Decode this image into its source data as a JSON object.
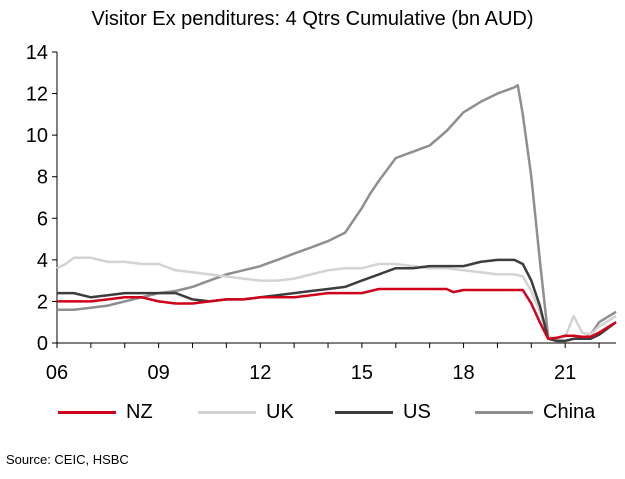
{
  "chart_data": {
    "type": "line",
    "title": "Visitor Ex penditures: 4 Qtrs Cumulative (bn AUD)",
    "ylim": [
      0,
      14
    ],
    "yticks": [
      0,
      2,
      4,
      6,
      8,
      10,
      12,
      14
    ],
    "xlim": [
      2006,
      2022.5
    ],
    "xtick_values": [
      2006,
      2009,
      2012,
      2015,
      2018,
      2021
    ],
    "xtick_labels": [
      "06",
      "09",
      "12",
      "15",
      "18",
      "21"
    ],
    "grid": false,
    "legend_position": "bottom",
    "series": [
      {
        "name": "NZ",
        "color": "#d0021b",
        "points": [
          [
            2006,
            2.0
          ],
          [
            2006.5,
            2.0
          ],
          [
            2007,
            2.0
          ],
          [
            2007.5,
            2.1
          ],
          [
            2008,
            2.2
          ],
          [
            2008.5,
            2.2
          ],
          [
            2009,
            2.0
          ],
          [
            2009.5,
            1.9
          ],
          [
            2010,
            1.9
          ],
          [
            2010.5,
            2.0
          ],
          [
            2011,
            2.1
          ],
          [
            2011.5,
            2.1
          ],
          [
            2012,
            2.2
          ],
          [
            2012.5,
            2.2
          ],
          [
            2013,
            2.2
          ],
          [
            2013.5,
            2.3
          ],
          [
            2014,
            2.4
          ],
          [
            2014.5,
            2.4
          ],
          [
            2015,
            2.4
          ],
          [
            2015.5,
            2.6
          ],
          [
            2016,
            2.6
          ],
          [
            2016.5,
            2.6
          ],
          [
            2017,
            2.6
          ],
          [
            2017.5,
            2.6
          ],
          [
            2017.7,
            2.45
          ],
          [
            2018,
            2.55
          ],
          [
            2018.5,
            2.55
          ],
          [
            2019,
            2.55
          ],
          [
            2019.5,
            2.55
          ],
          [
            2019.75,
            2.55
          ],
          [
            2020,
            1.9
          ],
          [
            2020.25,
            1.0
          ],
          [
            2020.5,
            0.2
          ],
          [
            2020.75,
            0.25
          ],
          [
            2021,
            0.35
          ],
          [
            2021.25,
            0.35
          ],
          [
            2021.5,
            0.3
          ],
          [
            2021.75,
            0.3
          ],
          [
            2022,
            0.5
          ],
          [
            2022.5,
            1.0
          ]
        ]
      },
      {
        "name": "UK",
        "color": "#d3d3d3",
        "points": [
          [
            2006,
            3.6
          ],
          [
            2006.25,
            3.8
          ],
          [
            2006.5,
            4.1
          ],
          [
            2007,
            4.1
          ],
          [
            2007.5,
            3.9
          ],
          [
            2008,
            3.9
          ],
          [
            2008.5,
            3.8
          ],
          [
            2009,
            3.8
          ],
          [
            2009.5,
            3.5
          ],
          [
            2010,
            3.4
          ],
          [
            2010.5,
            3.3
          ],
          [
            2011,
            3.2
          ],
          [
            2011.5,
            3.1
          ],
          [
            2012,
            3.0
          ],
          [
            2012.5,
            3.0
          ],
          [
            2013,
            3.1
          ],
          [
            2013.5,
            3.3
          ],
          [
            2014,
            3.5
          ],
          [
            2014.5,
            3.6
          ],
          [
            2015,
            3.6
          ],
          [
            2015.5,
            3.8
          ],
          [
            2016,
            3.8
          ],
          [
            2016.5,
            3.7
          ],
          [
            2017,
            3.6
          ],
          [
            2017.5,
            3.6
          ],
          [
            2018,
            3.5
          ],
          [
            2018.5,
            3.4
          ],
          [
            2019,
            3.3
          ],
          [
            2019.5,
            3.3
          ],
          [
            2019.75,
            3.2
          ],
          [
            2020,
            2.5
          ],
          [
            2020.25,
            1.5
          ],
          [
            2020.5,
            0.3
          ],
          [
            2020.75,
            0.2
          ],
          [
            2021,
            0.3
          ],
          [
            2021.25,
            1.3
          ],
          [
            2021.5,
            0.5
          ],
          [
            2021.75,
            0.4
          ],
          [
            2022,
            0.8
          ],
          [
            2022.5,
            1.3
          ]
        ]
      },
      {
        "name": "US",
        "color": "#3d3d3d",
        "points": [
          [
            2006,
            2.4
          ],
          [
            2006.5,
            2.4
          ],
          [
            2007,
            2.2
          ],
          [
            2007.5,
            2.3
          ],
          [
            2008,
            2.4
          ],
          [
            2008.5,
            2.4
          ],
          [
            2009,
            2.4
          ],
          [
            2009.5,
            2.4
          ],
          [
            2010,
            2.1
          ],
          [
            2010.5,
            2.0
          ],
          [
            2011,
            2.1
          ],
          [
            2011.5,
            2.1
          ],
          [
            2012,
            2.2
          ],
          [
            2012.5,
            2.3
          ],
          [
            2013,
            2.4
          ],
          [
            2013.5,
            2.5
          ],
          [
            2014,
            2.6
          ],
          [
            2014.5,
            2.7
          ],
          [
            2015,
            3.0
          ],
          [
            2015.5,
            3.3
          ],
          [
            2016,
            3.6
          ],
          [
            2016.5,
            3.6
          ],
          [
            2017,
            3.7
          ],
          [
            2017.5,
            3.7
          ],
          [
            2018,
            3.7
          ],
          [
            2018.5,
            3.9
          ],
          [
            2019,
            4.0
          ],
          [
            2019.5,
            4.0
          ],
          [
            2019.75,
            3.8
          ],
          [
            2020,
            3.0
          ],
          [
            2020.25,
            1.8
          ],
          [
            2020.5,
            0.2
          ],
          [
            2020.75,
            0.1
          ],
          [
            2021,
            0.1
          ],
          [
            2021.25,
            0.2
          ],
          [
            2021.5,
            0.2
          ],
          [
            2021.75,
            0.2
          ],
          [
            2022,
            0.4
          ],
          [
            2022.5,
            1.0
          ]
        ]
      },
      {
        "name": "China",
        "color": "#8f8f8f",
        "points": [
          [
            2006,
            1.6
          ],
          [
            2006.5,
            1.6
          ],
          [
            2007,
            1.7
          ],
          [
            2007.5,
            1.8
          ],
          [
            2008,
            2.0
          ],
          [
            2008.5,
            2.2
          ],
          [
            2009,
            2.4
          ],
          [
            2009.5,
            2.5
          ],
          [
            2010,
            2.7
          ],
          [
            2010.5,
            3.0
          ],
          [
            2011,
            3.3
          ],
          [
            2011.5,
            3.5
          ],
          [
            2012,
            3.7
          ],
          [
            2012.5,
            4.0
          ],
          [
            2013,
            4.3
          ],
          [
            2013.5,
            4.6
          ],
          [
            2014,
            4.9
          ],
          [
            2014.5,
            5.3
          ],
          [
            2015,
            6.5
          ],
          [
            2015.25,
            7.2
          ],
          [
            2015.5,
            7.8
          ],
          [
            2016,
            8.9
          ],
          [
            2016.5,
            9.2
          ],
          [
            2017,
            9.5
          ],
          [
            2017.5,
            10.2
          ],
          [
            2018,
            11.1
          ],
          [
            2018.5,
            11.6
          ],
          [
            2019,
            12.0
          ],
          [
            2019.5,
            12.3
          ],
          [
            2019.6,
            12.4
          ],
          [
            2019.75,
            11.0
          ],
          [
            2020,
            8.0
          ],
          [
            2020.25,
            4.0
          ],
          [
            2020.5,
            0.3
          ],
          [
            2020.75,
            0.1
          ],
          [
            2021,
            0.1
          ],
          [
            2021.25,
            0.2
          ],
          [
            2021.5,
            0.2
          ],
          [
            2021.75,
            0.4
          ],
          [
            2022,
            1.0
          ],
          [
            2022.5,
            1.5
          ]
        ]
      }
    ]
  },
  "source": "Source: CEIC, HSBC"
}
